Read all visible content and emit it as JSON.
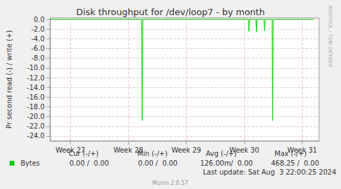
{
  "chart_data": {
    "type": "line",
    "title": "Disk throughput for /dev/loop7 - by month",
    "y_label": "Pr second read (-) / write (+)",
    "x": [
      26.65,
      28.23,
      28.24,
      28.25,
      30.07,
      30.08,
      30.09,
      30.2,
      30.21,
      30.22,
      30.34,
      30.35,
      30.36,
      30.48,
      30.49,
      30.5,
      31.2
    ],
    "series": [
      {
        "name": "Bytes",
        "color": "#00cc00",
        "values": [
          0,
          0,
          -20.8,
          0,
          0,
          -2.5,
          0,
          0,
          -2.6,
          0,
          0,
          -2.4,
          0,
          0,
          -20.8,
          0,
          0
        ]
      }
    ],
    "xlim": [
      26.65,
      31.29
    ],
    "xticks": [
      {
        "value": 27,
        "label": "Week 27"
      },
      {
        "value": 28,
        "label": "Week 28"
      },
      {
        "value": 29,
        "label": "Week 29"
      },
      {
        "value": 30,
        "label": "Week 30"
      },
      {
        "value": 31,
        "label": "Week 31"
      }
    ],
    "ylim": [
      -25,
      0.3
    ],
    "yticks": [
      {
        "value": -24,
        "label": "-24.0"
      },
      {
        "value": -22,
        "label": "-22.0"
      },
      {
        "value": -20,
        "label": "-20.0"
      },
      {
        "value": -18,
        "label": "-18.0"
      },
      {
        "value": -16,
        "label": "-16.0"
      },
      {
        "value": -14,
        "label": "-14.0"
      },
      {
        "value": -12,
        "label": "-12.0"
      },
      {
        "value": -10,
        "label": "-10.0"
      },
      {
        "value": -8,
        "label": "-8.0"
      },
      {
        "value": -6,
        "label": "-6.0"
      },
      {
        "value": -4,
        "label": "-4.0"
      },
      {
        "value": -2,
        "label": "-2.0"
      },
      {
        "value": 0,
        "label": "0.0"
      }
    ],
    "grid": true,
    "stats_headers": [
      "Cur (-/+)",
      "Min (-/+)",
      "Avg (-/+)",
      "Max (-/+)"
    ],
    "stats_values": [
      "0.00 /  0.00",
      "0.00 /  0.00",
      "126.00m/  0.00",
      "468.25 /  0.00"
    ],
    "last_update": "Last update: Sat Aug  3 22:00:25 2024",
    "credit": "RRDTOOL / TOBI OETIKER",
    "footer": "Munin 2.0.57"
  }
}
